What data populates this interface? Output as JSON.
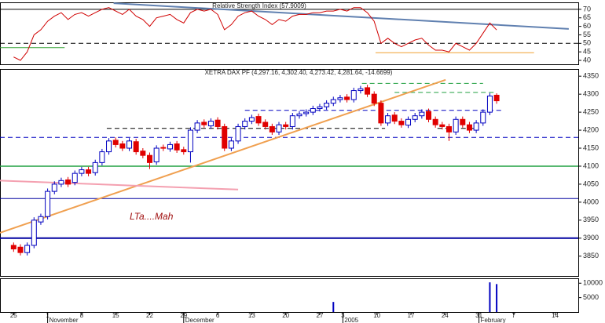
{
  "chart_data": [
    {
      "type": "line",
      "title": "Relative Strength Index (57.9009)",
      "color": "#d00000",
      "xlim": [
        -2,
        83
      ],
      "ylim": [
        37.7,
        74.1
      ],
      "yticks": [
        40,
        45,
        50,
        55,
        60,
        65,
        70
      ],
      "values": [
        42,
        40,
        45,
        55,
        58,
        63,
        66,
        68,
        64,
        67,
        68,
        66,
        68,
        70,
        71,
        69,
        67,
        70,
        66,
        64,
        60,
        65,
        66,
        67,
        64,
        62,
        68,
        70,
        69,
        70,
        67,
        58,
        61,
        66,
        68,
        69,
        66,
        64,
        61,
        64,
        63,
        66,
        67,
        67,
        68,
        68,
        69,
        69,
        70,
        69,
        71,
        71,
        68,
        63,
        50,
        53,
        50,
        48,
        50,
        52,
        53,
        49,
        46,
        46,
        45,
        50,
        48,
        46,
        50,
        56,
        62,
        57.9009
      ],
      "hlines": [
        {
          "y": 70,
          "color": "#000000",
          "dash": false
        },
        {
          "y": 50,
          "color": "#000000",
          "dash": true
        },
        {
          "y": 44.5,
          "x": [
            53.2,
            76.5
          ],
          "color": "#f0a030",
          "dash": false
        },
        {
          "y": 47.5,
          "x": [
            -2,
            7.5
          ],
          "color": "#30a030",
          "dash": false
        }
      ],
      "segments": [
        {
          "x": [
            14.7,
            81.6
          ],
          "y": [
            73.6,
            58.5
          ],
          "color": "#6080b0"
        }
      ]
    },
    {
      "type": "candlestick",
      "title": "XETRA DAX PF (4,297.16, 4,302.40, 4,273.42, 4,281.64, -14.6699)",
      "up_color": "#0000c0",
      "down_color": "#e00000",
      "xlim": [
        -2,
        83
      ],
      "ylim": [
        3795,
        4370
      ],
      "yticks": [
        3850,
        3900,
        3950,
        4000,
        4050,
        4100,
        4150,
        4200,
        4250,
        4300,
        4350
      ],
      "open": [
        3880,
        3875,
        3860,
        3880,
        3945,
        3960,
        4030,
        4050,
        4062,
        4055,
        4080,
        4090,
        4082,
        4110,
        4140,
        4172,
        4162,
        4150,
        4168,
        4142,
        4130,
        4112,
        4152,
        4148,
        4162,
        4146,
        4140,
        4200,
        4222,
        4212,
        4228,
        4210,
        4150,
        4170,
        4210,
        4225,
        4238,
        4222,
        4210,
        4195,
        4215,
        4210,
        4240,
        4246,
        4250,
        4260,
        4265,
        4275,
        4285,
        4292,
        4285,
        4310,
        4318,
        4300,
        4275,
        4220,
        4242,
        4225,
        4214,
        4230,
        4240,
        4252,
        4230,
        4215,
        4210,
        4195,
        4230,
        4215,
        4200,
        4220,
        4250,
        4297.16
      ],
      "high": [
        3888,
        3883,
        3888,
        3958,
        3968,
        4038,
        4058,
        4068,
        4070,
        4088,
        4098,
        4098,
        4118,
        4148,
        4178,
        4180,
        4170,
        4178,
        4176,
        4150,
        4138,
        4158,
        4160,
        4168,
        4170,
        4154,
        4208,
        4228,
        4230,
        4233,
        4236,
        4218,
        4178,
        4218,
        4233,
        4243,
        4246,
        4230,
        4218,
        4223,
        4223,
        4248,
        4253,
        4258,
        4268,
        4273,
        4283,
        4293,
        4298,
        4300,
        4318,
        4323,
        4326,
        4308,
        4283,
        4248,
        4250,
        4233,
        4238,
        4248,
        4258,
        4260,
        4238,
        4223,
        4218,
        4238,
        4238,
        4223,
        4228,
        4258,
        4303,
        4302.4
      ],
      "low": [
        3862,
        3852,
        3852,
        3872,
        3937,
        3952,
        4022,
        4042,
        4042,
        4047,
        4072,
        4072,
        4074,
        4102,
        4132,
        4152,
        4142,
        4142,
        4132,
        4122,
        4092,
        4104,
        4142,
        4140,
        4137,
        4132,
        4110,
        4192,
        4207,
        4204,
        4202,
        4142,
        4142,
        4162,
        4202,
        4217,
        4212,
        4202,
        4187,
        4187,
        4202,
        4202,
        4232,
        4238,
        4242,
        4252,
        4257,
        4267,
        4277,
        4277,
        4277,
        4302,
        4292,
        4267,
        4212,
        4212,
        4217,
        4207,
        4206,
        4222,
        4232,
        4222,
        4207,
        4202,
        4170,
        4187,
        4207,
        4192,
        4192,
        4212,
        4242,
        4273.42
      ],
      "close": [
        3870,
        3860,
        3880,
        3950,
        3960,
        4030,
        4050,
        4060,
        4050,
        4080,
        4090,
        4080,
        4110,
        4140,
        4170,
        4160,
        4150,
        4170,
        4140,
        4130,
        4110,
        4150,
        4150,
        4160,
        4145,
        4140,
        4200,
        4220,
        4215,
        4225,
        4210,
        4150,
        4170,
        4210,
        4225,
        4235,
        4220,
        4210,
        4195,
        4215,
        4210,
        4240,
        4245,
        4250,
        4260,
        4265,
        4275,
        4285,
        4290,
        4285,
        4310,
        4315,
        4300,
        4275,
        4220,
        4240,
        4225,
        4215,
        4230,
        4240,
        4250,
        4230,
        4215,
        4210,
        4195,
        4230,
        4215,
        4200,
        4220,
        4250,
        4295,
        4281.64
      ],
      "hlines": [
        {
          "y": 4100,
          "color": "#20a040",
          "dash": false,
          "width": 1.5
        },
        {
          "y": 4010,
          "color": "#0000a0",
          "dash": false,
          "width": 1
        },
        {
          "y": 3900,
          "color": "#0000a0",
          "dash": false,
          "width": 2
        },
        {
          "y": 4180,
          "color": "#0000c0",
          "dash": true,
          "width": 1
        },
        {
          "y": 4205,
          "x": [
            13.7,
            54.6
          ],
          "color": "#000000",
          "dash": true,
          "width": 1
        },
        {
          "y": 4205,
          "x": [
            62.3,
            67.9
          ],
          "color": "#000000",
          "dash": true,
          "width": 1
        },
        {
          "y": 4255,
          "x": [
            34,
            72
          ],
          "color": "#0000c0",
          "dash": true,
          "width": 1
        },
        {
          "y": 4330,
          "x": [
            51.2,
            69
          ],
          "color": "#20a040",
          "dash": true,
          "width": 1
        },
        {
          "y": 4305,
          "x": [
            56,
            70.8
          ],
          "color": "#20a040",
          "dash": true,
          "width": 1
        }
      ],
      "segments": [
        {
          "x": [
            -2,
            63.5
          ],
          "y": [
            3915,
            4340
          ],
          "color": "#f0a050"
        },
        {
          "x": [
            -2,
            33
          ],
          "y": [
            4060,
            4035
          ],
          "color": "#f4a0b0"
        }
      ],
      "annotation": "LTa....Mah"
    },
    {
      "type": "bar",
      "color": "#0000c0",
      "xlim": [
        -2,
        83
      ],
      "ylim": [
        0,
        11700
      ],
      "yticks": [
        5000,
        10000
      ],
      "values": [
        0,
        0,
        0,
        0,
        0,
        0,
        0,
        0,
        0,
        0,
        0,
        0,
        0,
        0,
        0,
        0,
        0,
        0,
        0,
        0,
        0,
        0,
        0,
        0,
        0,
        0,
        0,
        0,
        0,
        0,
        0,
        0,
        0,
        0,
        0,
        0,
        0,
        0,
        0,
        0,
        0,
        0,
        0,
        0,
        0,
        0,
        0,
        3500,
        0,
        0,
        0,
        0,
        0,
        0,
        0,
        0,
        0,
        0,
        0,
        0,
        0,
        0,
        0,
        0,
        0,
        0,
        0,
        0,
        0,
        0,
        10300,
        9700
      ],
      "xticks": [
        {
          "value": 0,
          "label": "25"
        },
        {
          "value": 5,
          "label": "1"
        },
        {
          "value": 10,
          "label": "8"
        },
        {
          "value": 15,
          "label": "15"
        },
        {
          "value": 20,
          "label": "22"
        },
        {
          "value": 25,
          "label": "29"
        },
        {
          "value": 30,
          "label": "6"
        },
        {
          "value": 35,
          "label": "13"
        },
        {
          "value": 40,
          "label": "20"
        },
        {
          "value": 45,
          "label": "27"
        },
        {
          "value": 48.4,
          "label": "3"
        },
        {
          "value": 53.4,
          "label": "10"
        },
        {
          "value": 58.4,
          "label": "17"
        },
        {
          "value": 63.4,
          "label": "24"
        },
        {
          "value": 68.4,
          "label": "31"
        },
        {
          "value": 73.5,
          "label": "7"
        },
        {
          "value": 79.6,
          "label": "14"
        }
      ],
      "month_ticks": [
        {
          "value": 5,
          "label": "November"
        },
        {
          "value": 25,
          "label": "December"
        },
        {
          "value": 48.4,
          "label": "2005"
        },
        {
          "value": 68.4,
          "label": "February"
        }
      ]
    }
  ]
}
